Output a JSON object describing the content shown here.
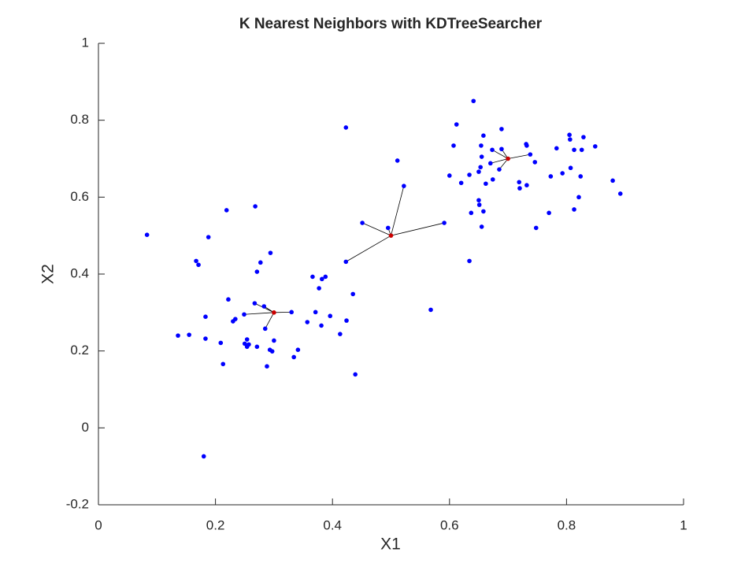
{
  "chart_data": {
    "type": "scatter",
    "title": "K Nearest Neighbors with KDTreeSearcher",
    "x_label": "X1",
    "y_label": "X2",
    "xlim": [
      0,
      1
    ],
    "xticks": [
      0,
      0.2,
      0.4,
      0.6,
      0.8,
      1
    ],
    "ylim": [
      -0.2,
      1
    ],
    "yticks": [
      -0.2,
      0,
      0.2,
      0.4,
      0.6,
      0.8,
      1
    ],
    "k": 5,
    "points": {
      "color": "#0000ff",
      "x": [
        0.083,
        0.219,
        0.188,
        0.268,
        0.167,
        0.171,
        0.277,
        0.294,
        0.271,
        0.366,
        0.388,
        0.382,
        0.377,
        0.222,
        0.267,
        0.435,
        0.183,
        0.234,
        0.23,
        0.249,
        0.283,
        0.33,
        0.357,
        0.371,
        0.396,
        0.381,
        0.424,
        0.285,
        0.136,
        0.155,
        0.183,
        0.209,
        0.254,
        0.257,
        0.25,
        0.254,
        0.271,
        0.3,
        0.293,
        0.297,
        0.341,
        0.334,
        0.413,
        0.213,
        0.288,
        0.439,
        0.18,
        0.568,
        0.423,
        0.423,
        0.451,
        0.495,
        0.511,
        0.522,
        0.591,
        0.641,
        0.612,
        0.658,
        0.689,
        0.607,
        0.654,
        0.673,
        0.689,
        0.731,
        0.732,
        0.783,
        0.805,
        0.806,
        0.829,
        0.849,
        0.813,
        0.826,
        0.807,
        0.655,
        0.653,
        0.67,
        0.685,
        0.746,
        0.738,
        0.6,
        0.62,
        0.634,
        0.65,
        0.662,
        0.674,
        0.719,
        0.732,
        0.72,
        0.773,
        0.793,
        0.824,
        0.879,
        0.892,
        0.821,
        0.65,
        0.651,
        0.637,
        0.658,
        0.655,
        0.748,
        0.77,
        0.813,
        0.634
      ],
      "y": [
        0.502,
        0.566,
        0.496,
        0.576,
        0.434,
        0.424,
        0.43,
        0.455,
        0.406,
        0.393,
        0.393,
        0.387,
        0.363,
        0.334,
        0.324,
        0.348,
        0.289,
        0.283,
        0.277,
        0.295,
        0.316,
        0.301,
        0.275,
        0.301,
        0.291,
        0.266,
        0.279,
        0.258,
        0.24,
        0.242,
        0.232,
        0.221,
        0.23,
        0.217,
        0.219,
        0.211,
        0.211,
        0.227,
        0.203,
        0.199,
        0.203,
        0.184,
        0.244,
        0.166,
        0.16,
        0.139,
        -0.074,
        0.307,
        0.781,
        0.432,
        0.533,
        0.52,
        0.695,
        0.629,
        0.533,
        0.85,
        0.789,
        0.76,
        0.777,
        0.734,
        0.734,
        0.723,
        0.725,
        0.738,
        0.734,
        0.727,
        0.762,
        0.75,
        0.756,
        0.732,
        0.723,
        0.723,
        0.676,
        0.705,
        0.678,
        0.688,
        0.672,
        0.691,
        0.711,
        0.656,
        0.637,
        0.658,
        0.666,
        0.635,
        0.646,
        0.639,
        0.631,
        0.623,
        0.654,
        0.662,
        0.654,
        0.643,
        0.609,
        0.6,
        0.592,
        0.58,
        0.559,
        0.563,
        0.523,
        0.52,
        0.559,
        0.568,
        0.434
      ]
    },
    "queries": {
      "color": "#cc0000",
      "x": [
        0.3,
        0.5,
        0.7
      ],
      "y": [
        0.3,
        0.5,
        0.7
      ]
    }
  }
}
